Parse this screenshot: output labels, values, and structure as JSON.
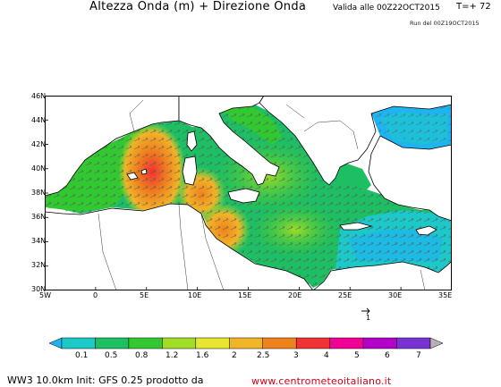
{
  "header": {
    "title": "Altezza Onda (m) + Direzione Onda",
    "valid": "Valida alle 00Z22OCT2015",
    "forecast_step": "T=+ 72",
    "run": "Run del 00Z19OCT2015"
  },
  "map": {
    "lon_range": [
      -5,
      35
    ],
    "lat_range": [
      30,
      46
    ],
    "lat_ticks": [
      "46N",
      "44N",
      "42N",
      "40N",
      "38N",
      "36N",
      "34N",
      "32N",
      "30N"
    ],
    "lon_ticks": [
      "5W",
      "0",
      "5E",
      "10E",
      "15E",
      "20E",
      "25E",
      "30E",
      "35E"
    ],
    "arrow_key_label": "1"
  },
  "colorbar": {
    "labels": [
      "0.1",
      "0.5",
      "0.8",
      "1.2",
      "1.6",
      "2",
      "2.5",
      "3",
      "4",
      "5",
      "6",
      "7"
    ],
    "colors": [
      "#1eb4f0",
      "#1cc8c8",
      "#1ebe64",
      "#32c832",
      "#a0dc28",
      "#e6e632",
      "#f0b428",
      "#f0821e",
      "#f03232",
      "#f00096",
      "#b400c8",
      "#7832d2",
      "#b4b4b4"
    ]
  },
  "footer": {
    "left": "WW3 10.0km Init: GFS 0.25 prodotto da",
    "right": "www.centrometeoitaliano.it"
  }
}
